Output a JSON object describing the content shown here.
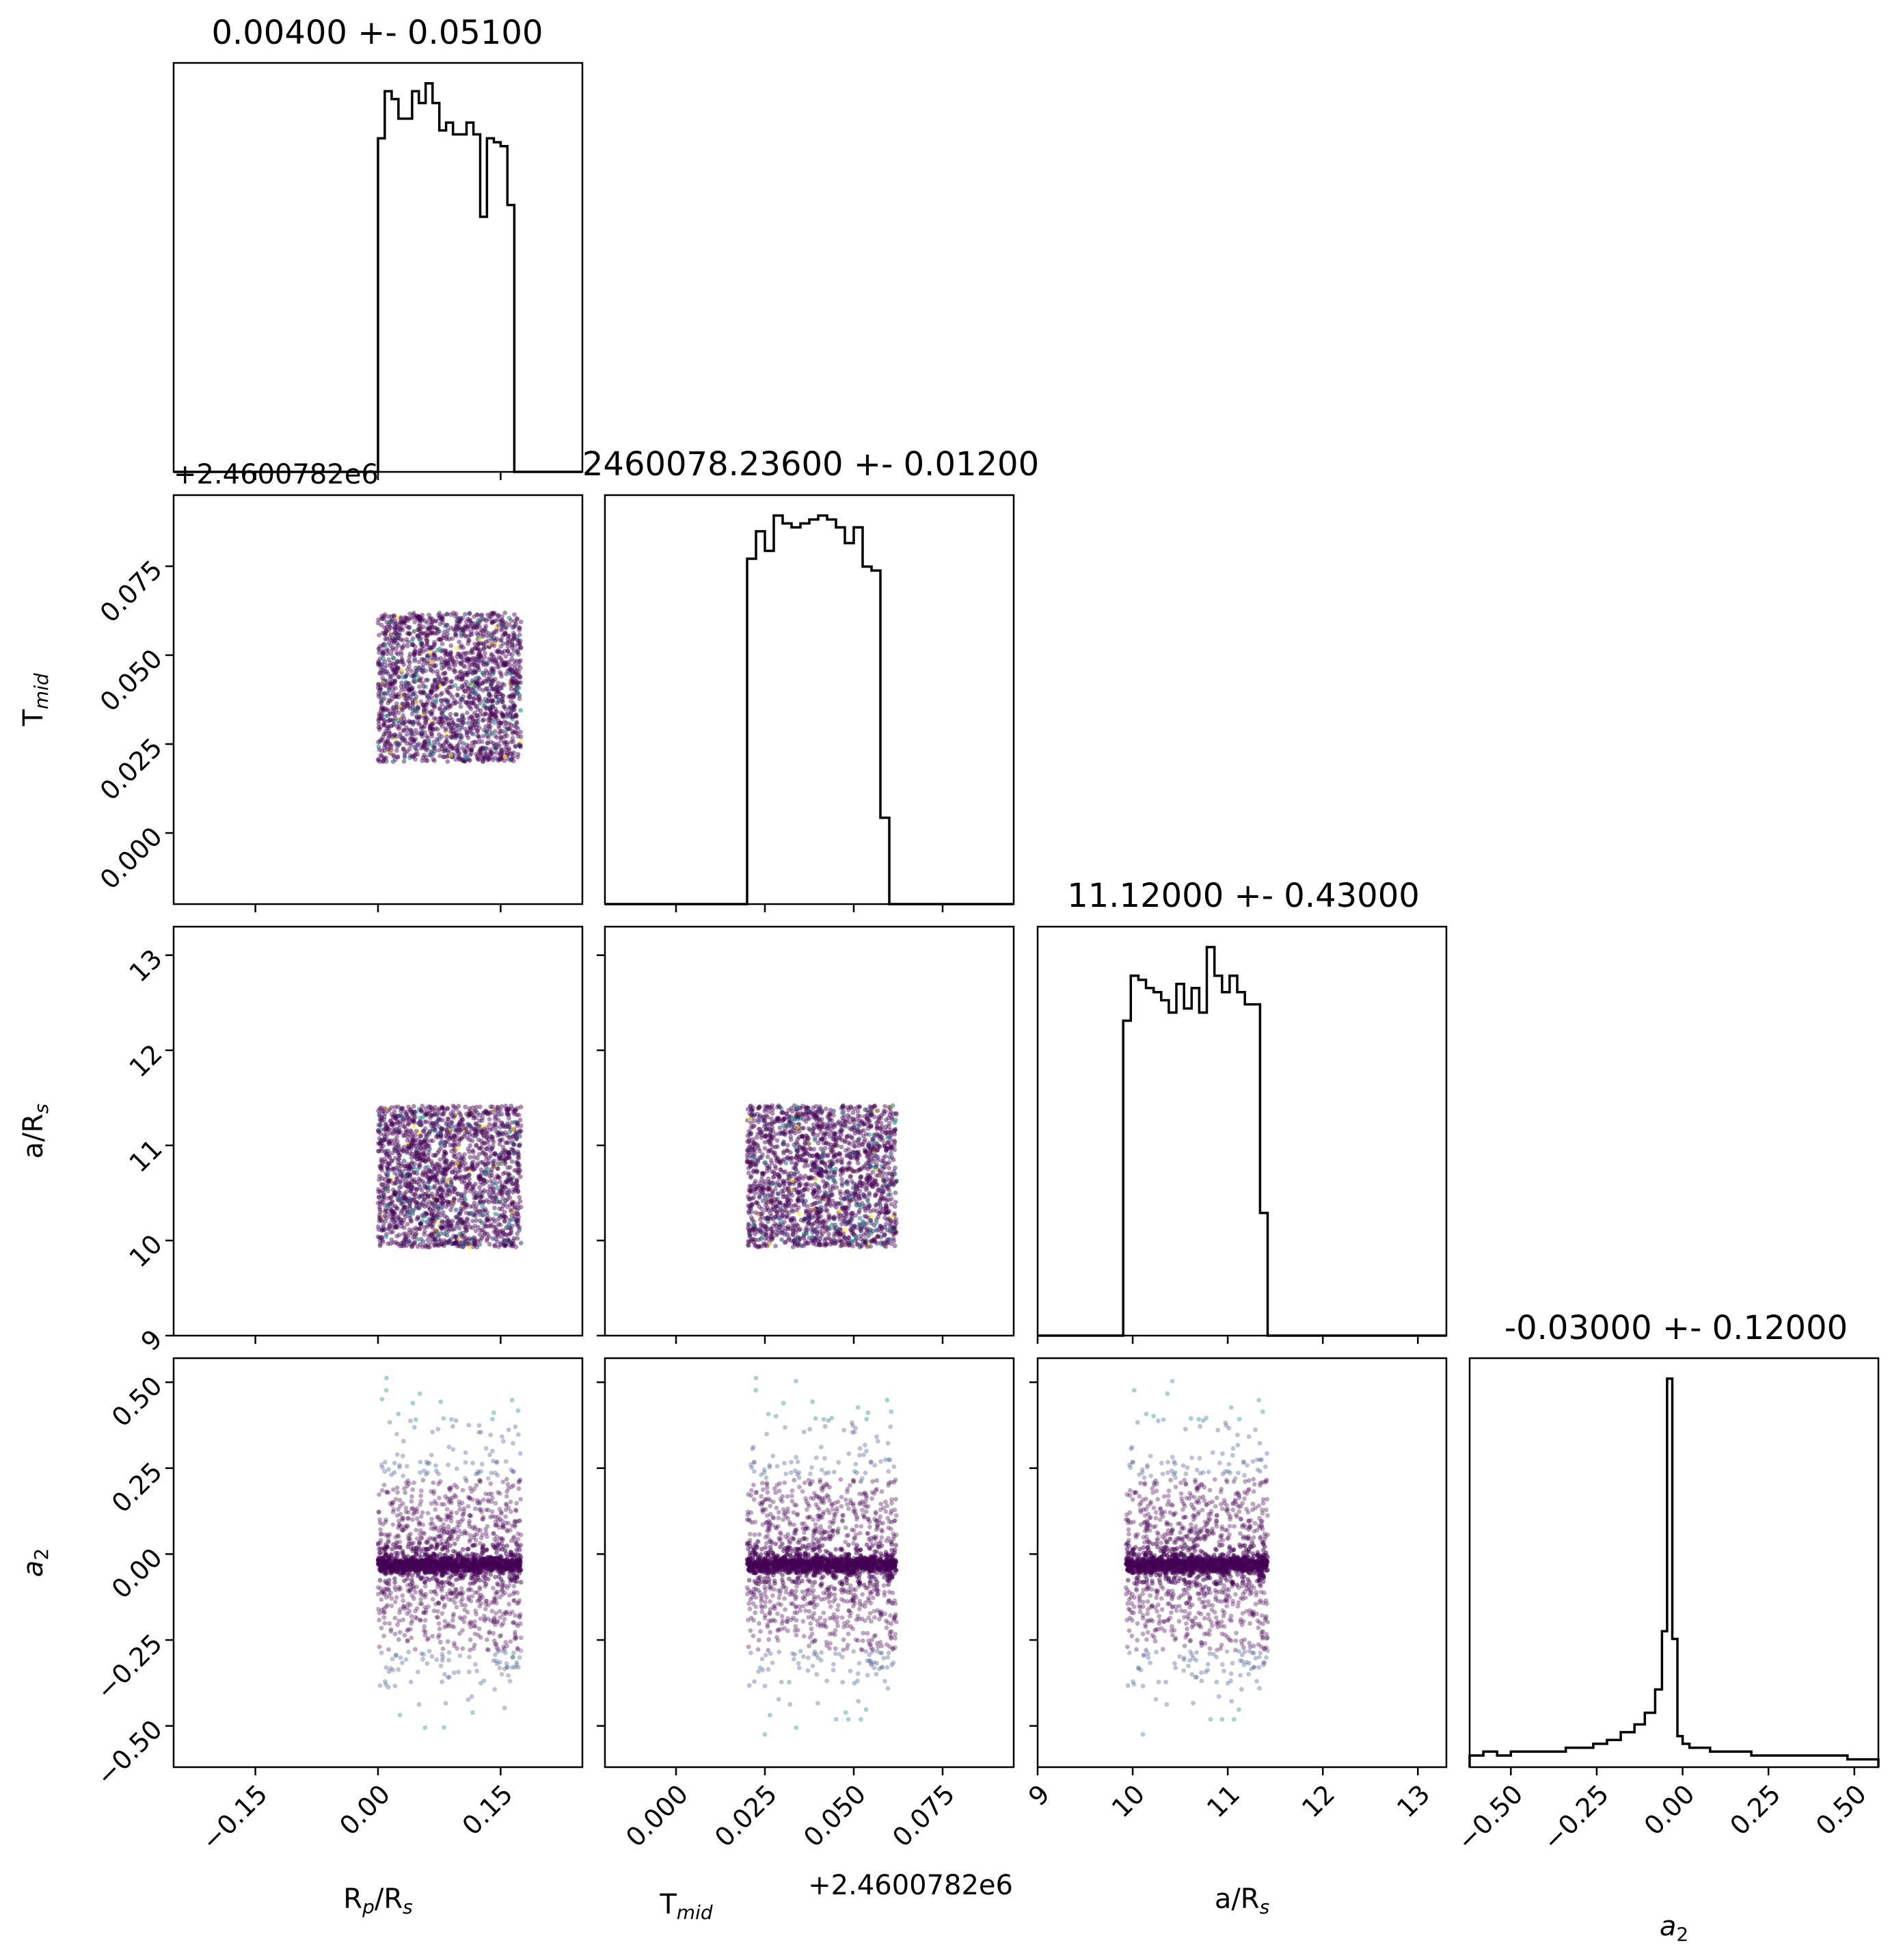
{
  "chart_data": {
    "type": "corner",
    "params": [
      {
        "id": "rp",
        "label_main": "R",
        "label_sub1": "p",
        "label_mid": "/R",
        "label_sub2": "s",
        "range": [
          -0.25,
          0.25
        ],
        "ticks": [
          -0.15,
          0.0,
          0.15
        ],
        "tick_labels": [
          "−0.15",
          "0.00",
          "0.15"
        ],
        "title": "0.00400 +- 0.05100",
        "hist": {
          "edges": [
            0.0,
            0.0083,
            0.0167,
            0.025,
            0.0333,
            0.0417,
            0.05,
            0.0583,
            0.0667,
            0.075,
            0.0833,
            0.0917,
            0.1,
            0.1083,
            0.1167,
            0.125,
            0.1333,
            0.1417,
            0.15,
            0.1583,
            0.1667,
            0.175
          ],
          "counts": [
            85,
            97,
            95,
            90,
            90,
            97,
            94,
            99,
            94,
            87,
            89,
            86,
            86,
            89,
            86,
            65,
            85,
            84,
            83,
            68,
            0
          ]
        }
      },
      {
        "id": "tmid",
        "label_main": "T",
        "label_sub1": "mid",
        "label_mid": "",
        "label_sub2": "",
        "range": [
          -0.02,
          0.095
        ],
        "ticks": [
          0.0,
          0.025,
          0.05,
          0.075
        ],
        "tick_labels": [
          "0.000",
          "0.025",
          "0.050",
          "0.075"
        ],
        "offset": "+2.4600782e6",
        "title": "2460078.23600 +- 0.01200",
        "hist": {
          "edges": [
            0.02,
            0.0225,
            0.025,
            0.0275,
            0.03,
            0.0325,
            0.035,
            0.0375,
            0.04,
            0.0425,
            0.045,
            0.0475,
            0.05,
            0.0525,
            0.055,
            0.0575,
            0.06,
            0.0625
          ],
          "counts": [
            88,
            95,
            90,
            99,
            97,
            96,
            97,
            98,
            99,
            98,
            96,
            92,
            96,
            86,
            85,
            22,
            0
          ]
        }
      },
      {
        "id": "ars",
        "label_main": "a/R",
        "label_sub1": "",
        "label_mid": "",
        "label_sub2": "s",
        "range": [
          9.0,
          13.3
        ],
        "ticks": [
          9,
          10,
          11,
          12,
          13
        ],
        "tick_labels": [
          "9",
          "10",
          "11",
          "12",
          "13"
        ],
        "title": "11.12000 +- 0.43000",
        "hist": {
          "edges": [
            9.9,
            9.98,
            10.06,
            10.14,
            10.22,
            10.3,
            10.38,
            10.46,
            10.54,
            10.62,
            10.7,
            10.78,
            10.86,
            10.94,
            11.02,
            11.1,
            11.18,
            11.26,
            11.34,
            11.42,
            11.5
          ],
          "counts": [
            77,
            88,
            87,
            85,
            84,
            82,
            79,
            86,
            80,
            85,
            79,
            95,
            88,
            84,
            88,
            84,
            81,
            81,
            30,
            0
          ]
        }
      },
      {
        "id": "a2",
        "label_main": "a",
        "label_sub1": "",
        "label_mid": "",
        "label_sub2": "2",
        "italic": true,
        "range": [
          -0.62,
          0.57
        ],
        "ticks": [
          -0.5,
          -0.25,
          0.0,
          0.25,
          0.5
        ],
        "tick_labels": [
          "−0.50",
          "−0.25",
          "0.00",
          "0.25",
          "0.50"
        ],
        "title": "-0.03000 +- 0.12000",
        "hist": {
          "edges": [
            -0.62,
            -0.58,
            -0.54,
            -0.5,
            -0.46,
            -0.42,
            -0.38,
            -0.34,
            -0.3,
            -0.26,
            -0.22,
            -0.18,
            -0.14,
            -0.11,
            -0.08,
            -0.06,
            -0.045,
            -0.03,
            -0.015,
            0.0,
            0.02,
            0.05,
            0.08,
            0.12,
            0.16,
            0.2,
            0.24,
            0.28,
            0.32,
            0.36,
            0.4,
            0.44,
            0.48,
            0.52,
            0.57
          ],
          "counts": [
            3,
            4,
            3,
            4,
            4,
            4,
            4,
            5,
            5,
            6,
            7,
            9,
            11,
            14,
            20,
            35,
            100,
            33,
            8,
            6,
            5,
            5,
            4,
            4,
            4,
            3,
            3,
            3,
            3,
            3,
            3,
            3,
            2,
            2
          ]
        }
      }
    ],
    "yaxis_ticks": {
      "tmid": {
        "ticks": [
          0.0,
          0.025,
          0.05,
          0.075
        ],
        "labels": [
          "0.000",
          "0.025",
          "0.050",
          "0.075"
        ],
        "offset": "+2.4600782e6"
      },
      "ars": {
        "ticks": [
          9,
          10,
          11,
          12,
          13
        ],
        "labels": [
          "9",
          "10",
          "11",
          "12",
          "13"
        ]
      },
      "a2": {
        "ticks": [
          -0.5,
          -0.25,
          0.0,
          0.25,
          0.5
        ],
        "labels": [
          "−0.50",
          "−0.25",
          "0.00",
          "0.25",
          "0.50"
        ]
      }
    },
    "scatter_boxes": {
      "rp": [
        0.0,
        0.175
      ],
      "tmid": [
        0.02,
        0.062
      ],
      "ars": [
        9.93,
        11.42
      ],
      "a2": [
        -0.62,
        0.57
      ]
    },
    "colors": {
      "dense": "#440154",
      "mid": "#3b528b",
      "sparse": "#21918c",
      "light": "#5ec962",
      "yellow": "#fde725"
    }
  },
  "texts": {
    "title_rp": "0.00400 +- 0.05100",
    "title_tmid": "2460078.23600 +- 0.01200",
    "title_ars": "11.12000 +- 0.43000",
    "title_a2": "-0.03000 +- 0.12000",
    "offset_y": "+2.4600782e6",
    "offset_x": "+2.4600782e6"
  }
}
